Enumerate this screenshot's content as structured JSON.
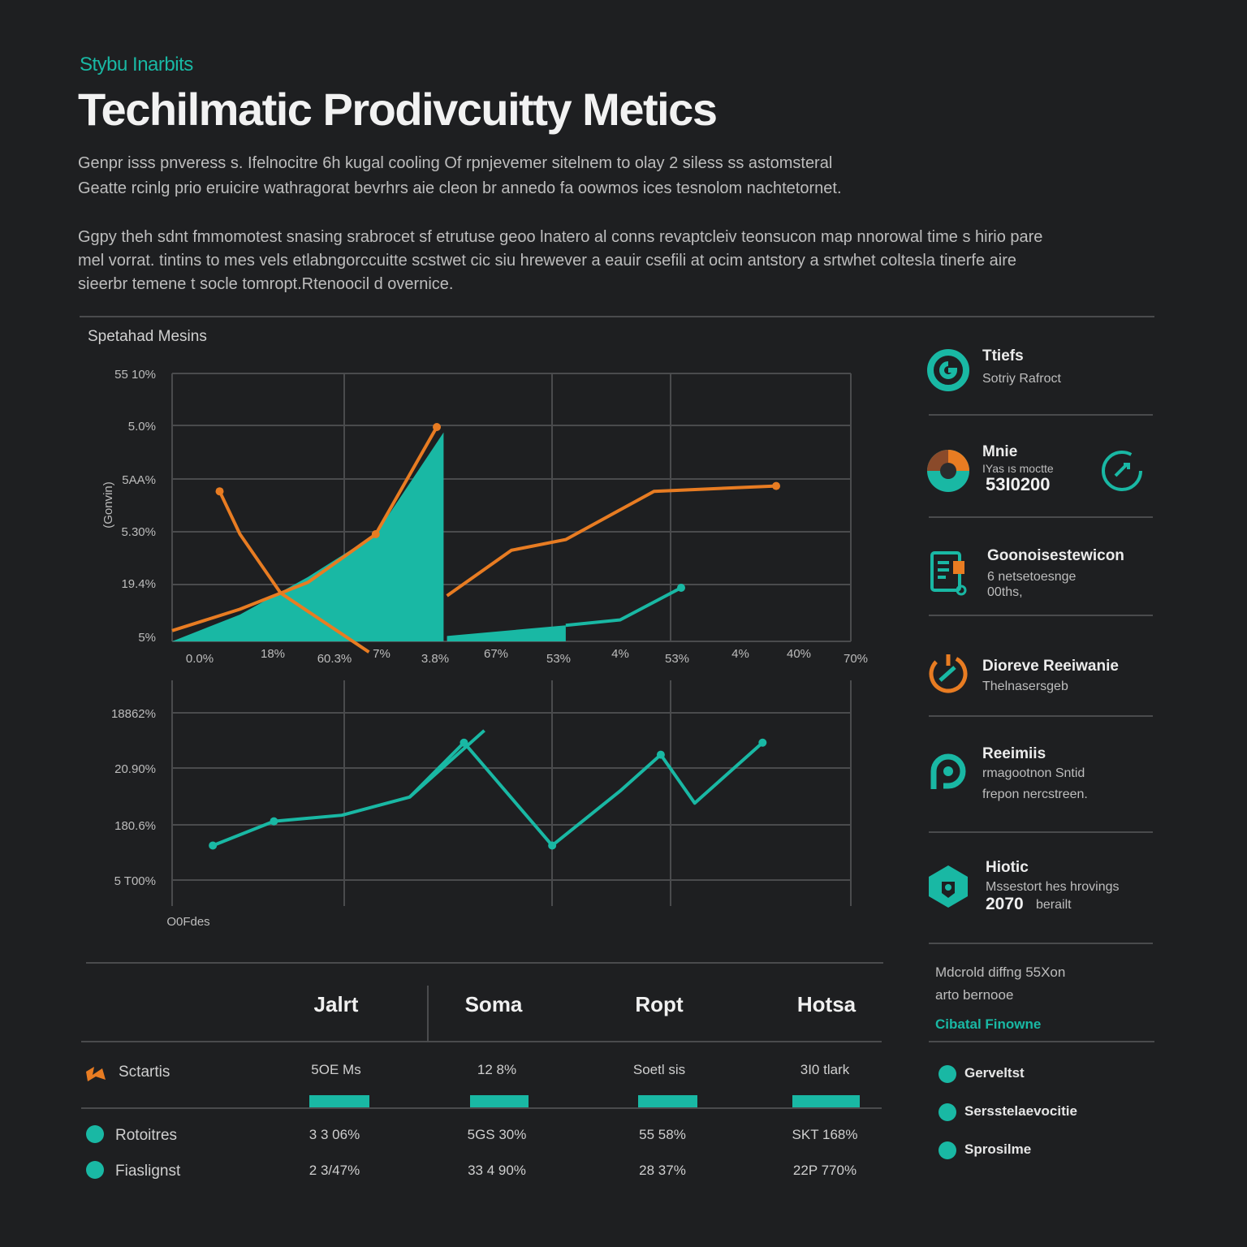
{
  "header": {
    "eyebrow": "Stybu Inarbits",
    "title": "Techilmatic Prodivcuitty Metics",
    "para1": [
      "Genpr isss pnveress s. Ifelnocitre 6h kugal cooling Of rpnjevemer sitelnem to olay 2 siless ss astomsteral",
      "Geatte rcinlg prio eruicire wathragorat bevrhrs aie cleon br annedo fa oowmos ices tesnolom nachtetornet."
    ],
    "para2": [
      "Ggpy theh sdnt fmmomotest snasing srabrocet sf etrutuse geoo lnatero al conns revaptcleiv teonsucon map nnorowal time s hirio pare",
      "mel vorrat. tintins to mes vels etlabngorccuitte scstwet cic siu hrewever a eauir csefili at ocim antstory a srtwhet coltesla tinerfe aire",
      "sieerbr temene t socle tomropt.Rtenoocil d overnice."
    ]
  },
  "chart_top_label": "Spetahad Mesins",
  "chart_data": [
    {
      "type": "line",
      "title": "Spetahad Mesins",
      "ylabel": "(Gonvin)",
      "y_ticks": [
        "5%",
        "19.4%",
        "5.30%",
        "5AA%",
        "5.0%",
        "55 10%"
      ],
      "x_ticks": [
        "0.0%",
        "18%",
        "60.3%",
        "7%",
        "3.8%",
        "67%",
        "53%",
        "4%",
        "53%",
        "4%",
        "40%",
        "70%"
      ],
      "ylim": [
        0,
        5
      ],
      "x": [
        0,
        1,
        2,
        3,
        4,
        5,
        6,
        7,
        8,
        9,
        10,
        11
      ],
      "series": [
        {
          "name": "orange-line",
          "color": "#e87c22",
          "points": [
            [
              0,
              0.2
            ],
            [
              1,
              0.6
            ],
            [
              2,
              1.1
            ],
            [
              3,
              2.0
            ],
            [
              3.9,
              4.0
            ],
            [
              4.05,
              0.85
            ],
            [
              5,
              1.7
            ],
            [
              5.8,
              1.9
            ],
            [
              7.1,
              2.8
            ],
            [
              8.9,
              2.9
            ]
          ],
          "markers": [
            [
              3,
              2.0
            ],
            [
              3.9,
              4.0
            ],
            [
              8.9,
              2.9
            ]
          ]
        },
        {
          "name": "orange-line-b",
          "color": "#e87c22",
          "points": [
            [
              0.7,
              2.8
            ],
            [
              1.0,
              2.0
            ],
            [
              1.6,
              0.9
            ],
            [
              2.9,
              -0.2
            ]
          ],
          "markers": [
            [
              0.7,
              2.8
            ]
          ]
        },
        {
          "name": "teal-area",
          "color": "#19b8a4",
          "points": [
            [
              0,
              0
            ],
            [
              1,
              0.5
            ],
            [
              2,
              1.2
            ],
            [
              3,
              2.0
            ],
            [
              4,
              3.9
            ],
            [
              4,
              0
            ],
            [
              4.05,
              0.1
            ],
            [
              5.8,
              0.3
            ],
            [
              6.6,
              0.4
            ],
            [
              7.5,
              1.0
            ]
          ],
          "markers": [
            [
              7.5,
              1.0
            ]
          ]
        }
      ]
    },
    {
      "type": "line",
      "y_ticks": [
        "5 T00%",
        "180.6%",
        "20.90%",
        "18862%"
      ],
      "x_label": "O0Fdes",
      "ylim": [
        0,
        3.3
      ],
      "series": [
        {
          "name": "teal-line",
          "color": "#19b8a4",
          "points": [
            [
              0.6,
              1.0
            ],
            [
              1.5,
              1.4
            ],
            [
              2.5,
              1.5
            ],
            [
              3.5,
              1.8
            ],
            [
              4.3,
              2.7
            ],
            [
              5.6,
              1.0
            ],
            [
              6.6,
              1.9
            ],
            [
              7.2,
              2.5
            ],
            [
              7.7,
              1.7
            ],
            [
              8.7,
              2.7
            ]
          ],
          "markers": [
            [
              0.6,
              1.0
            ],
            [
              1.5,
              1.4
            ],
            [
              4.3,
              2.7
            ],
            [
              5.6,
              1.0
            ],
            [
              7.2,
              2.5
            ],
            [
              8.7,
              2.7
            ]
          ]
        },
        {
          "name": "teal-line-b",
          "color": "#19b8a4",
          "points": [
            [
              3.5,
              1.8
            ],
            [
              4.6,
              2.9
            ]
          ],
          "markers": []
        }
      ]
    }
  ],
  "sidebar": {
    "items": [
      {
        "title": "Ttiefs",
        "sub": [
          "Sotriy Rafroct"
        ]
      },
      {
        "title": "Mnie",
        "sub": [
          "IYas ıs moctte"
        ],
        "big": "53I0200"
      },
      {
        "title": "Goonoisestewicon",
        "sub": [
          "6 netsetoesnge",
          "00ths,"
        ]
      },
      {
        "title": "Dioreve Reeiwanie",
        "sub": [
          "Thelnasersgeb"
        ]
      },
      {
        "title": "Reeimiis",
        "sub": [
          "rmagootnon Sntid",
          "frepon nercstreen."
        ]
      },
      {
        "title": "Hiotic",
        "sub": [
          "Mssestort hes hrovings"
        ],
        "big": "2070",
        "big_suffix": "berailt"
      }
    ],
    "note": [
      "Mdcrold diffng 55Xon",
      "arto bernooe"
    ],
    "note_link": "Cibatal Finowne",
    "legend": [
      "Gerveltst",
      "Sersstelaevocitie",
      "Sprosilme"
    ]
  },
  "table": {
    "columns": [
      "Jalrt",
      "Soma",
      "Ropt",
      "Hotsa"
    ],
    "rows": [
      {
        "label": "Sctartis",
        "values": [
          "5OE Ms",
          "12 8%",
          "Soetl sis",
          "3I0 tlark"
        ]
      },
      {
        "label": "Rotoitres",
        "values": [
          "3 3 06%",
          "5GS 30%",
          "55 58%",
          "SKT 168%"
        ]
      },
      {
        "label": "Fiaslignst",
        "values": [
          "2 3/47%",
          "33 4 90%",
          "28 37%",
          "22P 770%"
        ]
      }
    ],
    "bar_fractions": [
      0.74,
      0.72,
      0.73,
      0.83
    ]
  },
  "colors": {
    "teal": "#19b8a4",
    "orange": "#e87c22",
    "bg": "#1e1f21"
  }
}
